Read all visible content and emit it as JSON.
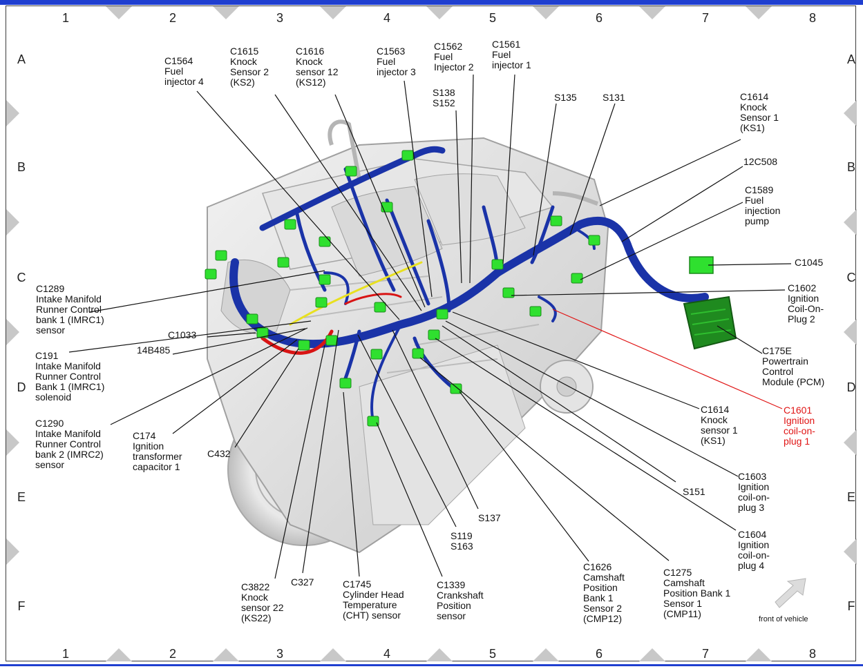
{
  "grid": {
    "columns": [
      "1",
      "2",
      "3",
      "4",
      "5",
      "6",
      "7",
      "8"
    ],
    "rows": [
      "A",
      "B",
      "C",
      "D",
      "E",
      "F"
    ]
  },
  "labels": {
    "c1564": [
      "C1564",
      "Fuel",
      "injector 4"
    ],
    "c1615": [
      "C1615",
      "Knock",
      "Sensor 2",
      "(KS2)"
    ],
    "c1616": [
      "C1616",
      "Knock",
      "sensor 12",
      "(KS12)"
    ],
    "c1563": [
      "C1563",
      "Fuel",
      "injector 3"
    ],
    "c1562": [
      "C1562",
      "Fuel",
      "Injector 2"
    ],
    "s138": [
      "S138",
      "S152"
    ],
    "c1561": [
      "C1561",
      "Fuel",
      "injector 1"
    ],
    "s135": [
      "S135"
    ],
    "s131": [
      "S131"
    ],
    "c1614_top": [
      "C1614",
      "Knock",
      "Sensor 1",
      "(KS1)"
    ],
    "r12c508": [
      "12C508"
    ],
    "c1589": [
      "C1589",
      "Fuel",
      "injection",
      "pump"
    ],
    "c1045": [
      "C1045"
    ],
    "c1602": [
      "C1602",
      "Ignition",
      "Coil-On-",
      "Plug 2"
    ],
    "c175e": [
      "C175E",
      "Powertrain",
      "Control",
      "Module (PCM)"
    ],
    "c1601": [
      "C1601",
      "Ignition",
      "coil-on-",
      "plug 1"
    ],
    "c1614_bot": [
      "C1614",
      "Knock",
      "sensor 1",
      "(KS1)"
    ],
    "c1603": [
      "C1603",
      "Ignition",
      "coil-on-",
      "plug 3"
    ],
    "s151": [
      "S151"
    ],
    "c1604": [
      "C1604",
      "Ignition",
      "coil-on-",
      "plug 4"
    ],
    "c1275": [
      "C1275",
      "Camshaft",
      "Position Bank 1",
      "Sensor 1",
      "(CMP11)"
    ],
    "c1626": [
      "C1626",
      "Camshaft",
      "Position",
      "Bank 1",
      "Sensor 2",
      "(CMP12)"
    ],
    "s137": [
      "S137"
    ],
    "s119": [
      "S119",
      "S163"
    ],
    "c1339": [
      "C1339",
      "Crankshaft",
      "Position",
      "sensor"
    ],
    "c1745": [
      "C1745",
      "Cylinder Head",
      "Temperature",
      "(CHT) sensor"
    ],
    "c327": [
      "C327"
    ],
    "c3822": [
      "C3822",
      "Knock",
      "sensor 22",
      "(KS22)"
    ],
    "c432": [
      "C432"
    ],
    "c174": [
      "C174",
      "Ignition",
      "transformer",
      "capacitor 1"
    ],
    "c1290": [
      "C1290",
      "Intake Manifold",
      "Runner Control",
      "bank 2 (IMRC2)",
      "sensor"
    ],
    "c191": [
      "C191",
      "Intake Manifold",
      "Runner Control",
      "Bank 1 (IMRC1)",
      "solenoid"
    ],
    "r14b485": [
      "14B485"
    ],
    "c1033": [
      "C1033"
    ],
    "c1289": [
      "C1289",
      "Intake Manifold",
      "Runner Control",
      "bank 1 (IMRC1)",
      "sensor"
    ]
  },
  "front_of_vehicle": "front of vehicle",
  "colors": {
    "harness": "#1a33a8",
    "connector": "#2fe02f",
    "pcm": "#1f8a1f",
    "highlight": "#e01414",
    "border": "#1f3fd0"
  }
}
